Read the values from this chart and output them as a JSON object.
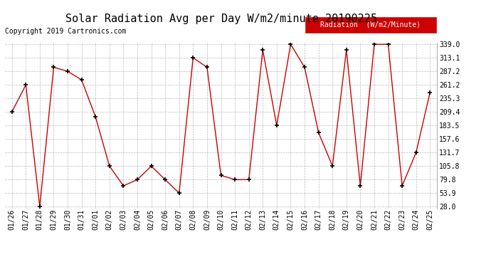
{
  "title": "Solar Radiation Avg per Day W/m2/minute 20190225",
  "copyright": "Copyright 2019 Cartronics.com",
  "legend_label": "Radiation  (W/m2/Minute)",
  "dates": [
    "01/26",
    "01/27",
    "01/28",
    "01/29",
    "01/30",
    "01/31",
    "02/01",
    "02/02",
    "02/03",
    "02/04",
    "02/05",
    "02/06",
    "02/07",
    "02/08",
    "02/09",
    "02/10",
    "02/11",
    "02/12",
    "02/13",
    "02/14",
    "02/15",
    "02/16",
    "02/17",
    "02/18",
    "02/19",
    "02/20",
    "02/21",
    "02/22",
    "02/23",
    "02/24",
    "02/25"
  ],
  "values": [
    209.4,
    261.2,
    28.0,
    295.0,
    287.2,
    271.0,
    200.0,
    105.8,
    68.0,
    79.8,
    105.8,
    79.8,
    53.9,
    313.1,
    295.0,
    88.0,
    79.8,
    79.8,
    328.0,
    183.5,
    339.0,
    295.0,
    170.0,
    105.8,
    328.0,
    68.0,
    339.0,
    339.0,
    68.0,
    131.7,
    247.0
  ],
  "line_color": "#cc0000",
  "marker_color": "#000000",
  "bg_color": "#ffffff",
  "grid_color": "#aaaaaa",
  "ylim_min": 28.0,
  "ylim_max": 339.0,
  "yticks": [
    28.0,
    53.9,
    79.8,
    105.8,
    131.7,
    157.6,
    183.5,
    209.4,
    235.3,
    261.2,
    287.2,
    313.1,
    339.0
  ],
  "legend_bg": "#cc0000",
  "legend_text_color": "#ffffff",
  "title_fontsize": 11,
  "tick_fontsize": 7,
  "copyright_fontsize": 7
}
